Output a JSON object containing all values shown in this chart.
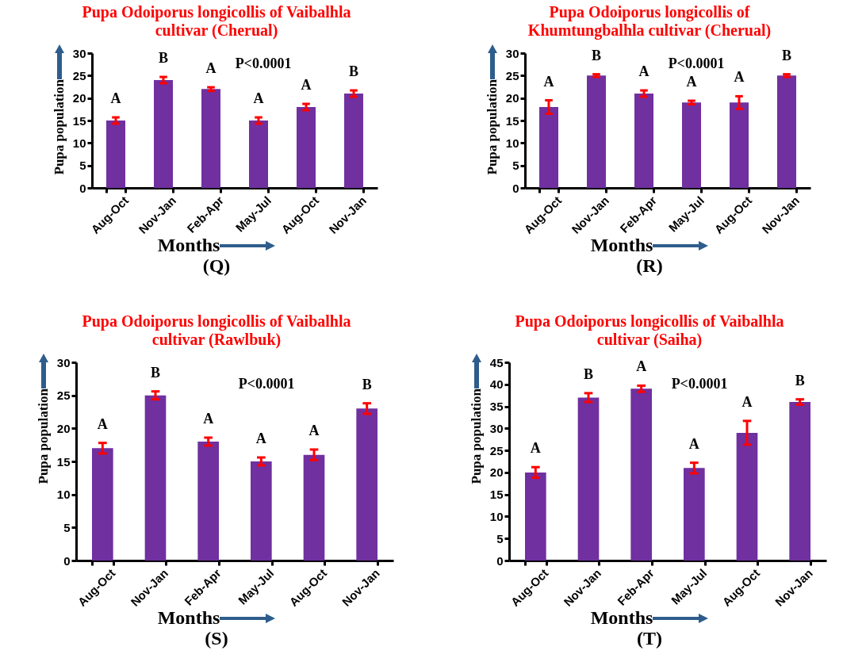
{
  "chart_data": [
    {
      "type": "bar",
      "title": "Pupa Odoiporus longicollis of Vaibalhla cultivar (Cherual)",
      "xlabel": "Months",
      "ylabel": "Pupa population",
      "categories": [
        "Aug-Oct",
        "Nov-Jan",
        "Feb-Apr",
        "May-Jul",
        "Aug-Oct",
        "Nov-Jan"
      ],
      "series": [
        {
          "color": "#7030a0",
          "values": [
            15,
            24,
            22,
            15,
            18,
            21
          ],
          "errors": [
            0.7,
            0.7,
            0.4,
            0.7,
            0.7,
            0.7
          ],
          "value_labels": [
            "A",
            "B",
            "A",
            "A",
            "A",
            "B"
          ]
        }
      ],
      "ylim": [
        0,
        30
      ],
      "yticks": [
        0,
        5,
        10,
        15,
        20,
        25,
        30
      ],
      "annotations": [
        "P<0.0001",
        "(Q)"
      ]
    },
    {
      "type": "bar",
      "title": "Pupa Odoiporus longicollis of Khumtungbalhla cultivar (Cherual)",
      "xlabel": "Months",
      "ylabel": "Pupa population",
      "categories": [
        "Aug-Oct",
        "Nov-Jan",
        "Feb-Apr",
        "May-Jul",
        "Aug-Oct",
        "Nov-Jan"
      ],
      "series": [
        {
          "color": "#7030a0",
          "values": [
            18,
            25,
            21,
            19,
            19,
            25
          ],
          "errors": [
            1.5,
            0.3,
            0.7,
            0.4,
            1.4,
            0.3
          ],
          "value_labels": [
            "A",
            "B",
            "A",
            "A",
            "A",
            "B"
          ]
        }
      ],
      "ylim": [
        0,
        30
      ],
      "yticks": [
        0,
        5,
        10,
        15,
        20,
        25,
        30
      ],
      "annotations": [
        "P<0.0001",
        "(R)"
      ]
    },
    {
      "type": "bar",
      "title": "Pupa Odoiporus longicollis of Vaibalhla cultivar (Rawlbuk)",
      "xlabel": "Months",
      "ylabel": "Pupa population",
      "categories": [
        "Aug-Oct",
        "Nov-Jan",
        "Feb-Apr",
        "May-Jul",
        "Aug-Oct",
        "Nov-Jan"
      ],
      "series": [
        {
          "color": "#7030a0",
          "values": [
            17,
            25,
            18,
            15,
            16,
            23
          ],
          "errors": [
            0.8,
            0.6,
            0.6,
            0.6,
            0.8,
            0.8
          ],
          "value_labels": [
            "A",
            "B",
            "A",
            "A",
            "A",
            "B"
          ]
        }
      ],
      "ylim": [
        0,
        30
      ],
      "yticks": [
        0,
        5,
        10,
        15,
        20,
        25,
        30
      ],
      "annotations": [
        "P<0.0001",
        "(S)"
      ]
    },
    {
      "type": "bar",
      "title": "Pupa Odoiporus longicollis of Vaibalhla cultivar (Saiha)",
      "xlabel": "Months",
      "ylabel": "Pupa population",
      "categories": [
        "Aug-Oct",
        "Nov-Jan",
        "Feb-Apr",
        "May-Jul",
        "Aug-Oct",
        "Nov-Jan"
      ],
      "series": [
        {
          "color": "#7030a0",
          "values": [
            20,
            37,
            39,
            21,
            29,
            36
          ],
          "errors": [
            1.2,
            1,
            0.7,
            1.2,
            2.7,
            0.6
          ],
          "value_labels": [
            "A",
            "B",
            "A",
            "A",
            "A",
            "B"
          ]
        }
      ],
      "ylim": [
        0,
        45
      ],
      "yticks": [
        0,
        5,
        10,
        15,
        20,
        25,
        30,
        35,
        40,
        45
      ],
      "annotations": [
        "P<0.0001",
        "(T)"
      ]
    }
  ]
}
